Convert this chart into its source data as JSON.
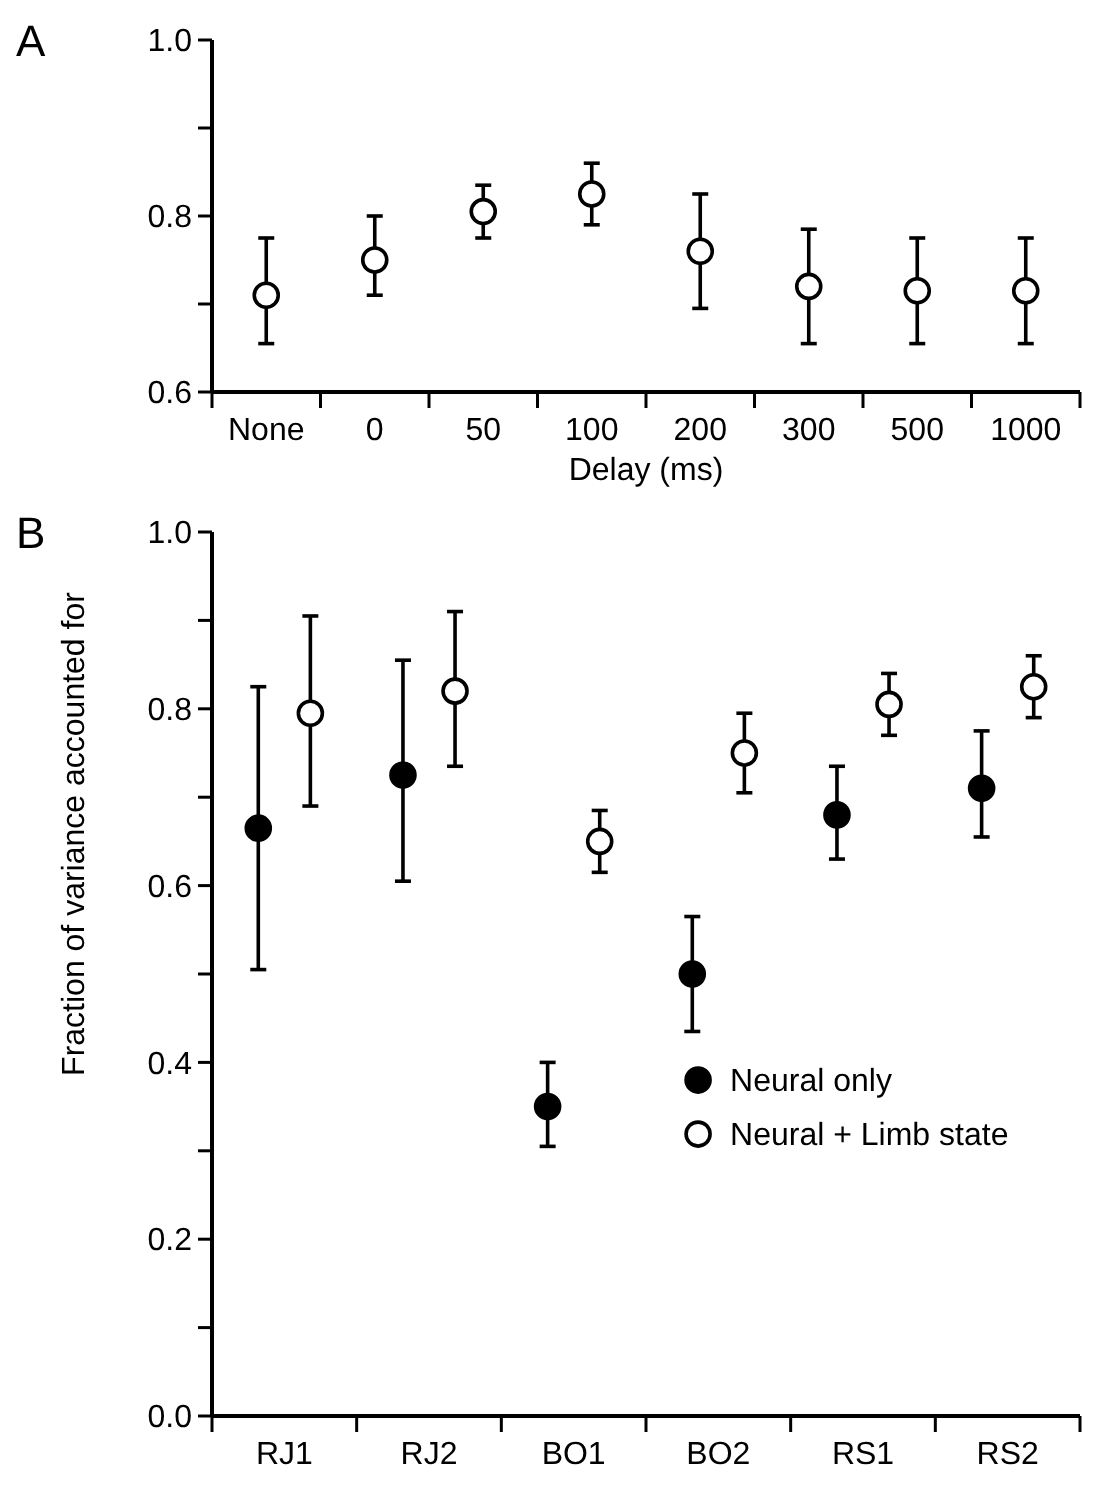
{
  "chart_data": [
    {
      "type": "scatter",
      "title": "A",
      "xlabel": "Delay (ms)",
      "categories": [
        "None",
        "0",
        "50",
        "100",
        "200",
        "300",
        "500",
        "1000"
      ],
      "ylim": [
        0.6,
        1.0
      ],
      "yticks": [
        0.6,
        {
          "value": 0.7,
          "label": null
        },
        0.8,
        {
          "value": 0.9,
          "label": null
        },
        {
          "value": 1.0,
          "label": "1.0"
        }
      ],
      "marker": "circle",
      "legend": false,
      "grid": false,
      "series": [
        {
          "color": "#ffffff",
          "values": [
            0.71,
            0.75,
            0.805,
            0.825,
            0.76,
            0.72,
            0.715,
            0.715
          ],
          "errors": [
            [
              0.655,
              0.775
            ],
            [
              0.71,
              0.8
            ],
            [
              0.775,
              0.835
            ],
            [
              0.79,
              0.86
            ],
            [
              0.695,
              0.825
            ],
            [
              0.655,
              0.785
            ],
            [
              0.655,
              0.775
            ],
            [
              0.655,
              0.775
            ]
          ]
        }
      ]
    },
    {
      "type": "scatter",
      "title": "B",
      "ylabel": "Fraction of variance accounted for",
      "categories": [
        "RJ1",
        "RJ2",
        "BO1",
        "BO2",
        "RS1",
        "RS2"
      ],
      "ylim": [
        0,
        1.0
      ],
      "yticks": [
        {
          "value": 0,
          "label": "0.0"
        },
        {
          "value": 0.1,
          "label": null
        },
        0.2,
        {
          "value": 0.3,
          "label": null
        },
        0.4,
        {
          "value": 0.5,
          "label": null
        },
        0.6,
        {
          "value": 0.7,
          "label": null
        },
        0.8,
        {
          "value": 0.9,
          "label": null
        },
        {
          "value": 1.0,
          "label": "1.0"
        }
      ],
      "marker": "circle",
      "legend": "bottom right",
      "grid": false,
      "series": [
        {
          "name": "Neural only",
          "color": "#000000",
          "values": [
            0.665,
            0.725,
            0.35,
            0.5,
            0.68,
            0.71
          ],
          "errors": [
            [
              0.505,
              0.825
            ],
            [
              0.605,
              0.855
            ],
            [
              0.305,
              0.4
            ],
            [
              0.435,
              0.565
            ],
            [
              0.63,
              0.735
            ],
            [
              0.655,
              0.775
            ]
          ]
        },
        {
          "name": "Neural + Limb state",
          "color": "#ffffff",
          "values": [
            0.795,
            0.82,
            0.65,
            0.75,
            0.805,
            0.825
          ],
          "errors": [
            [
              0.69,
              0.905
            ],
            [
              0.735,
              0.91
            ],
            [
              0.615,
              0.685
            ],
            [
              0.705,
              0.795
            ],
            [
              0.77,
              0.84
            ],
            [
              0.79,
              0.86
            ]
          ]
        }
      ]
    }
  ]
}
